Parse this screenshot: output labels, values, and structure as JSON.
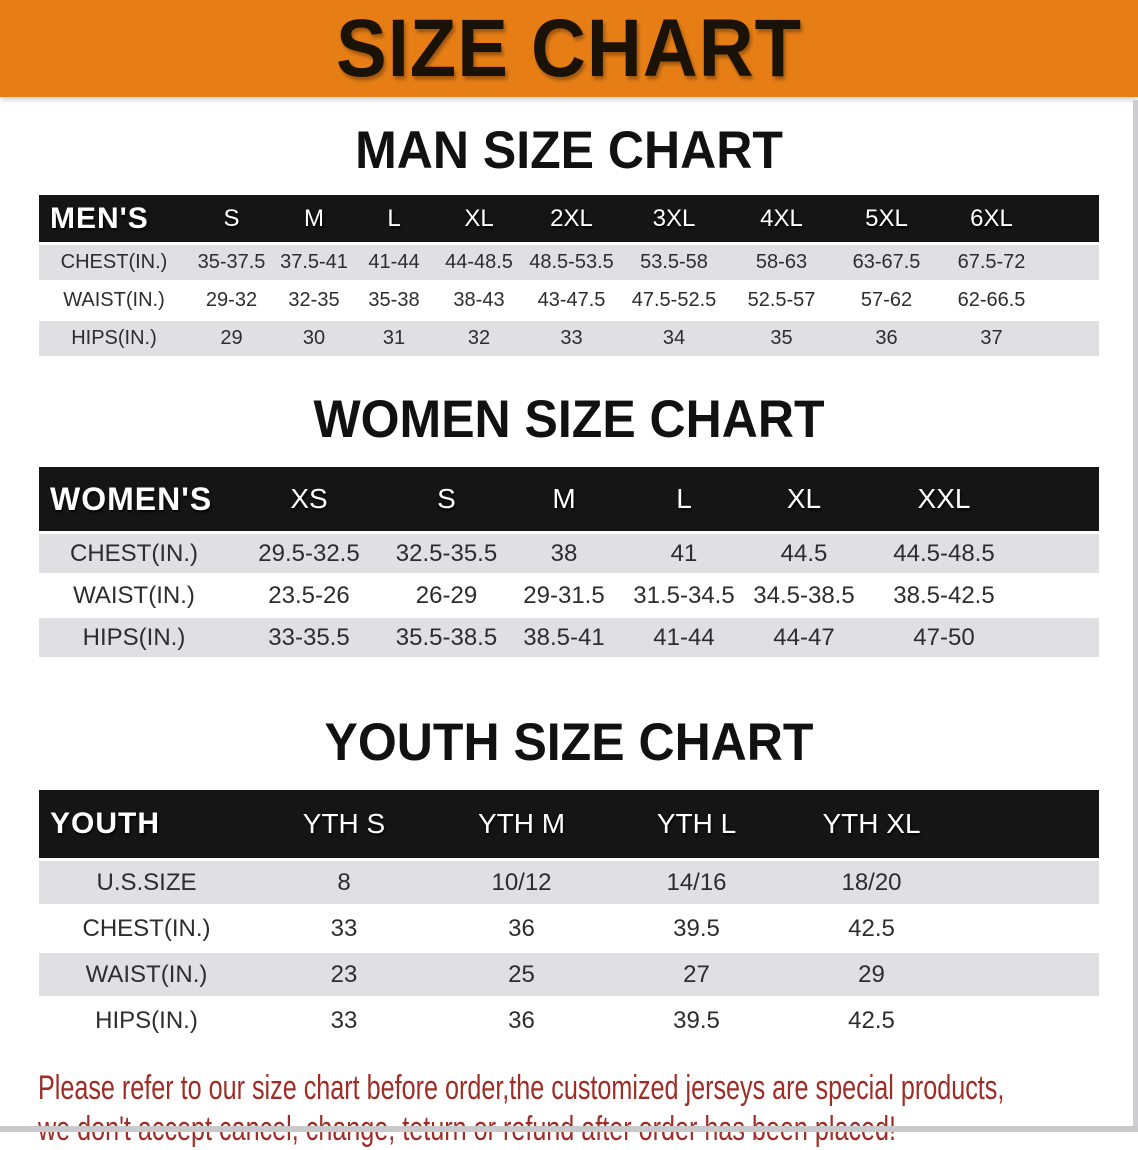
{
  "banner": {
    "title": "SIZE CHART"
  },
  "colors": {
    "banner_bg": "#e67d15",
    "banner_text": "#1a1206",
    "band_bg": "#151515",
    "row_shade": "#e0e0e3",
    "disclaimer_red": "#9e2d26"
  },
  "sections": [
    {
      "title": "MAN SIZE CHART",
      "table": {
        "label": "MEN'S",
        "columns": [
          "S",
          "M",
          "L",
          "XL",
          "2XL",
          "3XL",
          "4XL",
          "5XL",
          "6XL"
        ],
        "rows": [
          {
            "label": "CHEST(IN.)",
            "values": [
              "35-37.5",
              "37.5-41",
              "41-44",
              "44-48.5",
              "48.5-53.5",
              "53.5-58",
              "58-63",
              "63-67.5",
              "67.5-72"
            ]
          },
          {
            "label": "WAIST(IN.)",
            "values": [
              "29-32",
              "32-35",
              "35-38",
              "38-43",
              "43-47.5",
              "47.5-52.5",
              "52.5-57",
              "57-62",
              "62-66.5"
            ]
          },
          {
            "label": "HIPS(IN.)",
            "values": [
              "29",
              "30",
              "31",
              "32",
              "33",
              "34",
              "35",
              "36",
              "37"
            ]
          }
        ]
      }
    },
    {
      "title": "WOMEN SIZE CHART",
      "table": {
        "label": "WOMEN'S",
        "columns": [
          "XS",
          "S",
          "M",
          "L",
          "XL",
          "XXL"
        ],
        "rows": [
          {
            "label": "CHEST(IN.)",
            "values": [
              "29.5-32.5",
              "32.5-35.5",
              "38",
              "41",
              "44.5",
              "44.5-48.5"
            ]
          },
          {
            "label": "WAIST(IN.)",
            "values": [
              "23.5-26",
              "26-29",
              "29-31.5",
              "31.5-34.5",
              "34.5-38.5",
              "38.5-42.5"
            ]
          },
          {
            "label": "HIPS(IN.)",
            "values": [
              "33-35.5",
              "35.5-38.5",
              "38.5-41",
              "41-44",
              "44-47",
              "47-50"
            ]
          }
        ]
      }
    },
    {
      "title": "YOUTH SIZE CHART",
      "table": {
        "label": "YOUTH",
        "columns": [
          "YTH S",
          "YTH M",
          "YTH L",
          "YTH XL"
        ],
        "rows": [
          {
            "label": "U.S.SIZE",
            "values": [
              "8",
              "10/12",
              "14/16",
              "18/20"
            ]
          },
          {
            "label": "CHEST(IN.)",
            "values": [
              "33",
              "36",
              "39.5",
              "42.5"
            ]
          },
          {
            "label": "WAIST(IN.)",
            "values": [
              "23",
              "25",
              "27",
              "29"
            ]
          },
          {
            "label": "HIPS(IN.)",
            "values": [
              "33",
              "36",
              "39.5",
              "42.5"
            ]
          }
        ]
      }
    }
  ],
  "disclaimer": {
    "line1": "Please refer to our size chart before order,the customized jerseys are special products,",
    "line2": "we don't accept cancel, change, teturn or refund after order has been placed!"
  }
}
